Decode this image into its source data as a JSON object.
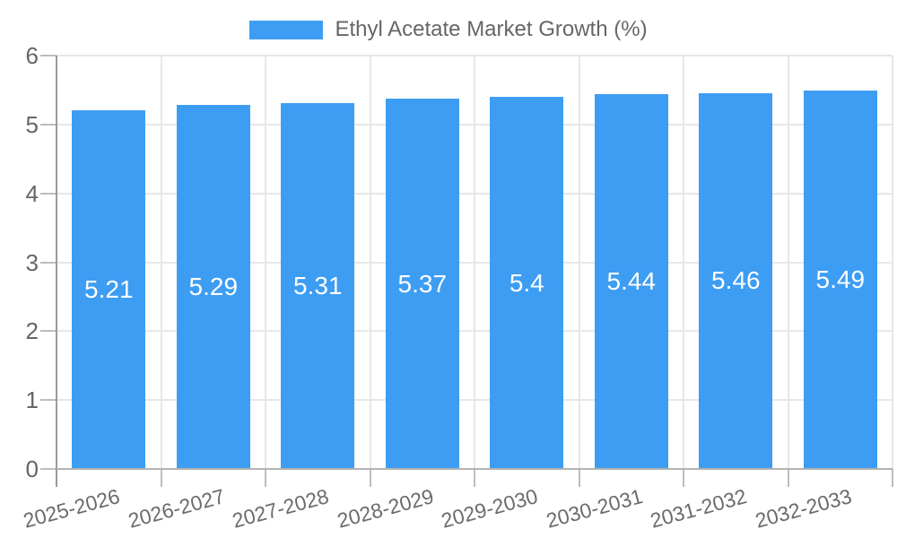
{
  "chart_data": {
    "type": "bar",
    "legend_label": "Ethyl Acetate Market Growth (%)",
    "legend_position": "top",
    "categories": [
      "2025-2026",
      "2026-2027",
      "2027-2028",
      "2028-2029",
      "2029-2030",
      "2030-2031",
      "2031-2032",
      "2032-2033"
    ],
    "values": [
      5.21,
      5.29,
      5.31,
      5.37,
      5.4,
      5.44,
      5.46,
      5.49
    ],
    "value_labels": [
      "5.21",
      "5.29",
      "5.31",
      "5.37",
      "5.4",
      "5.44",
      "5.46",
      "5.49"
    ],
    "title": "",
    "xlabel": "",
    "ylabel": "",
    "ylim": [
      0,
      6
    ],
    "yticks": [
      0,
      1,
      2,
      3,
      4,
      5,
      6
    ],
    "grid": true,
    "colors": {
      "bar": "#3d9df3",
      "grid": "#e7e7e7",
      "axis": "#9a9a9a",
      "baseline": "#b3b3b3",
      "tick": "#bdbdbd",
      "text": "#666666",
      "value_text": "#ffffff",
      "background": "#ffffff"
    }
  }
}
